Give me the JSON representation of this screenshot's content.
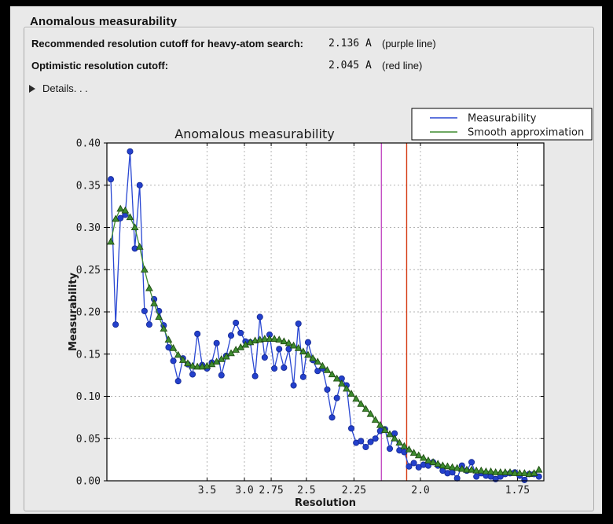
{
  "panel": {
    "title": "Anomalous measurability",
    "rows": [
      {
        "label": "Recommended resolution cutoff for heavy-atom search:",
        "value": "2.136 A",
        "note": "(purple line)"
      },
      {
        "label": "Optimistic resolution cutoff:",
        "value": "2.045 A",
        "note": "(red line)"
      }
    ],
    "details_label": "Details. . ."
  },
  "chart_data": {
    "type": "line",
    "title": "Anomalous measurability",
    "xlabel": "Resolution",
    "ylabel": "Measurability",
    "x_scale": "inverse_d_squared",
    "x_s_start": 0.005704,
    "x_s_step": 0.003795,
    "n_points": 90,
    "ylim": [
      0.0,
      0.4
    ],
    "ytick_labels": [
      "0.00",
      "0.05",
      "0.10",
      "0.15",
      "0.20",
      "0.25",
      "0.30",
      "0.35",
      "0.40"
    ],
    "ytick_values": [
      0.0,
      0.05,
      0.1,
      0.15,
      0.2,
      0.25,
      0.3,
      0.35,
      0.4
    ],
    "xtick_labels": [
      "3.5",
      "3.0",
      "2.75",
      "2.5",
      "2.25",
      "2.0",
      "1.75"
    ],
    "xtick_values": [
      3.5,
      3.0,
      2.75,
      2.5,
      2.25,
      2.0,
      1.75
    ],
    "grid": true,
    "legend_position": "top-right",
    "legend": [
      {
        "label": "Measurability",
        "color": "#2846d2"
      },
      {
        "label": "Smooth approximation",
        "color": "#3e8c2f"
      }
    ],
    "vlines": [
      {
        "name": "purple line",
        "resolution": 2.136,
        "color": "#c44ec4"
      },
      {
        "name": "red line",
        "resolution": 2.045,
        "color": "#d53a12"
      }
    ],
    "series": [
      {
        "name": "Measurability",
        "marker": "circle",
        "color": "#2846d2",
        "marker_fill": "#2340cc",
        "marker_edge": "#172b96",
        "values": [
          0.357,
          0.185,
          0.311,
          0.315,
          0.39,
          0.275,
          0.35,
          0.201,
          0.185,
          0.215,
          0.201,
          0.184,
          0.158,
          0.142,
          0.118,
          0.145,
          0.138,
          0.126,
          0.174,
          0.137,
          0.133,
          0.14,
          0.163,
          0.125,
          0.148,
          0.172,
          0.187,
          0.175,
          0.165,
          0.164,
          0.124,
          0.194,
          0.146,
          0.173,
          0.133,
          0.156,
          0.134,
          0.156,
          0.113,
          0.186,
          0.123,
          0.164,
          0.143,
          0.13,
          0.133,
          0.108,
          0.075,
          0.098,
          0.121,
          0.113,
          0.062,
          0.045,
          0.047,
          0.04,
          0.046,
          0.05,
          0.059,
          0.061,
          0.038,
          0.056,
          0.036,
          0.034,
          0.017,
          0.021,
          0.016,
          0.019,
          0.018,
          0.022,
          0.018,
          0.012,
          0.009,
          0.01,
          0.003,
          0.018,
          0.012,
          0.022,
          0.005,
          0.009,
          0.006,
          0.005,
          0.002,
          0.005,
          0.008,
          0.009,
          0.01,
          0.006,
          0.001,
          0.008,
          0.008,
          0.005
        ]
      },
      {
        "name": "Smooth approximation",
        "marker": "triangle",
        "color": "#3e8c2f",
        "marker_fill": "#3e8c2f",
        "marker_edge": "#1e4c12",
        "values": [
          0.283,
          0.31,
          0.322,
          0.32,
          0.312,
          0.3,
          0.277,
          0.25,
          0.228,
          0.21,
          0.194,
          0.18,
          0.167,
          0.157,
          0.149,
          0.143,
          0.139,
          0.136,
          0.135,
          0.135,
          0.136,
          0.138,
          0.141,
          0.144,
          0.147,
          0.151,
          0.155,
          0.158,
          0.161,
          0.164,
          0.166,
          0.167,
          0.168,
          0.168,
          0.168,
          0.167,
          0.165,
          0.163,
          0.16,
          0.157,
          0.153,
          0.149,
          0.145,
          0.141,
          0.136,
          0.131,
          0.126,
          0.121,
          0.115,
          0.109,
          0.103,
          0.097,
          0.091,
          0.085,
          0.079,
          0.072,
          0.066,
          0.06,
          0.055,
          0.05,
          0.045,
          0.041,
          0.037,
          0.033,
          0.03,
          0.027,
          0.024,
          0.022,
          0.02,
          0.018,
          0.017,
          0.016,
          0.015,
          0.014,
          0.013,
          0.013,
          0.012,
          0.012,
          0.011,
          0.011,
          0.01,
          0.01,
          0.01,
          0.01,
          0.009,
          0.009,
          0.009,
          0.008,
          0.009,
          0.013
        ]
      }
    ],
    "colors": {
      "plot_background": "#ffffff",
      "figure_background": "#e9e9e9",
      "grid": "#b3b3b3",
      "axis": "#000000",
      "text": "#1a1a1a"
    }
  }
}
